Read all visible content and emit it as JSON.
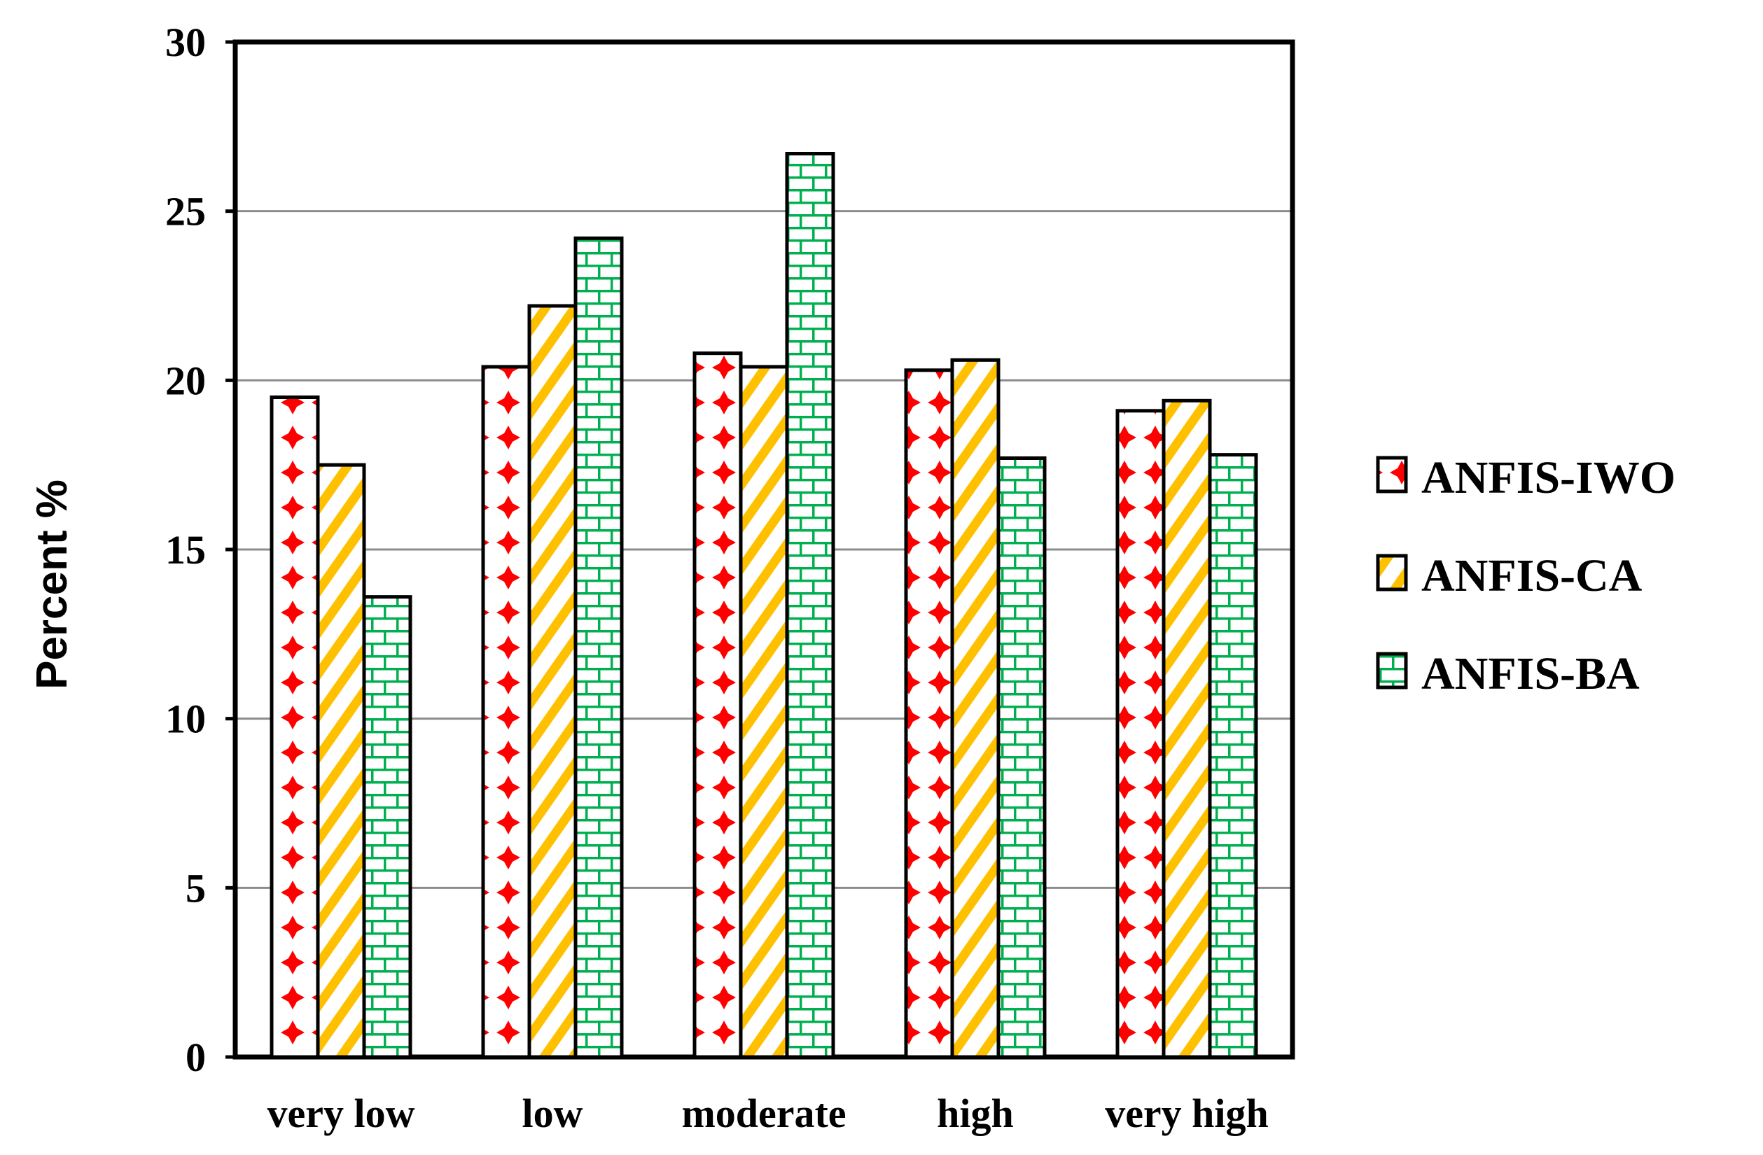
{
  "chart_data": {
    "type": "bar",
    "title": "",
    "xlabel": "",
    "ylabel": "Percent %",
    "ylim": [
      0,
      30
    ],
    "yticks": [
      "0",
      "5",
      "10",
      "15",
      "20",
      "25",
      "30"
    ],
    "grid": true,
    "legend_position": "right",
    "categories": [
      "very low",
      "low",
      "moderate",
      "high",
      "very high"
    ],
    "series": [
      {
        "name": "ANFIS-IWO",
        "pattern": "red-cross-dots",
        "color": "#ff0000",
        "values": [
          19.5,
          20.4,
          20.8,
          20.3,
          19.1
        ]
      },
      {
        "name": "ANFIS-CA",
        "pattern": "yellow-diagonal-stripes",
        "color": "#ffc000",
        "values": [
          17.5,
          22.2,
          20.4,
          20.6,
          19.4
        ]
      },
      {
        "name": "ANFIS-BA",
        "pattern": "green-brick",
        "color": "#00b050",
        "values": [
          13.6,
          24.2,
          26.7,
          17.7,
          17.8
        ]
      }
    ]
  }
}
